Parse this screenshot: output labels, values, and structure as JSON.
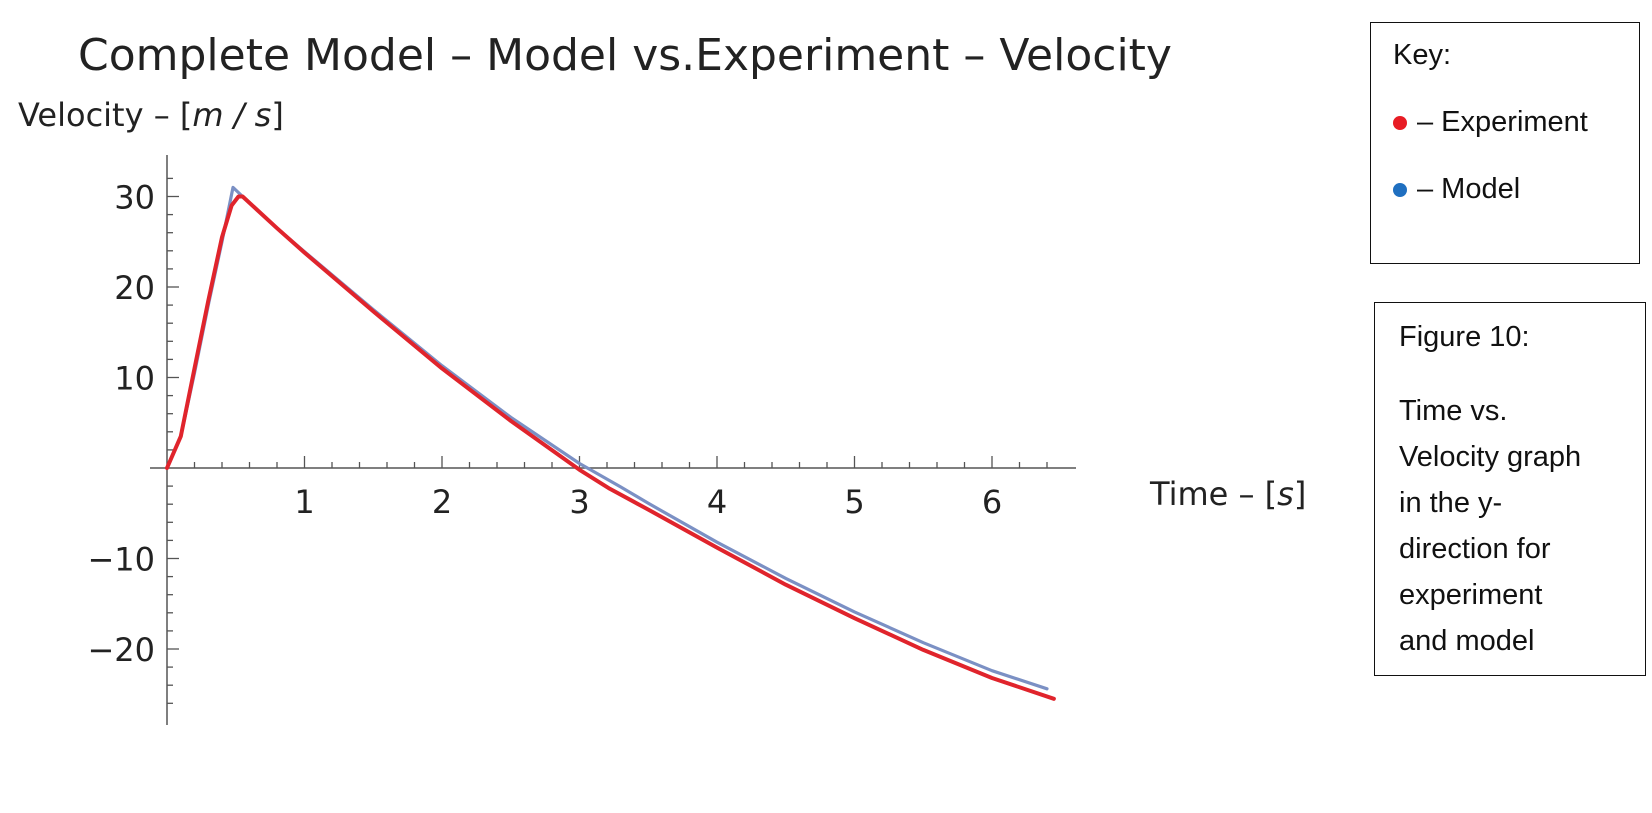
{
  "chart_data": {
    "type": "line",
    "title": "Complete Model – Model vs.Experiment – Velocity",
    "ylabel_main": "Velocity – ",
    "ylabel_unit": "m / s",
    "xlabel_main": "Time – ",
    "xlabel_unit": "s",
    "xlim": [
      0,
      6.6
    ],
    "ylim": [
      -28,
      34
    ],
    "x_ticks": [
      1,
      2,
      3,
      4,
      5,
      6
    ],
    "x_tick_labels": [
      "1",
      "2",
      "3",
      "4",
      "5",
      "6"
    ],
    "y_ticks": [
      -20,
      -10,
      10,
      20,
      30
    ],
    "y_tick_labels": [
      "−20",
      "−10",
      "10",
      "20",
      "30"
    ],
    "grid": false,
    "series": [
      {
        "name": "Model",
        "color": "#7b90c4",
        "x": [
          0,
          0.1,
          0.2,
          0.3,
          0.4,
          0.48,
          0.55,
          0.8,
          1.0,
          1.5,
          2.0,
          2.5,
          3.0,
          3.3,
          3.5,
          4.0,
          4.5,
          5.0,
          5.5,
          6.0,
          6.4
        ],
        "y": [
          0,
          3.5,
          10.5,
          18.0,
          25.0,
          31.0,
          30.0,
          26.5,
          23.9,
          17.5,
          11.3,
          5.6,
          0.5,
          -2.1,
          -3.9,
          -8.2,
          -12.2,
          -15.9,
          -19.3,
          -22.4,
          -24.4
        ]
      },
      {
        "name": "Experiment",
        "color": "#e0242c",
        "x": [
          0,
          0.1,
          0.2,
          0.3,
          0.4,
          0.47,
          0.52,
          0.55,
          0.8,
          1.0,
          1.5,
          2.0,
          2.5,
          3.0,
          3.22,
          3.5,
          4.0,
          4.5,
          5.0,
          5.5,
          6.0,
          6.45
        ],
        "y": [
          0,
          3.5,
          11.0,
          18.5,
          25.5,
          29.0,
          30.0,
          30.0,
          26.5,
          23.8,
          17.3,
          11.0,
          5.2,
          -0.2,
          -2.3,
          -4.6,
          -8.8,
          -12.9,
          -16.6,
          -20.1,
          -23.2,
          -25.5
        ]
      }
    ]
  },
  "legend": {
    "header": "Key:",
    "items": [
      {
        "label": "– Experiment",
        "color": "#e81c24"
      },
      {
        "label": "– Model",
        "color": "#1f6fc0"
      }
    ]
  },
  "caption": {
    "figure": "Figure 10:",
    "lines": [
      "Time vs.",
      "Velocity graph",
      "in the y-",
      "direction for",
      "experiment",
      "and model"
    ]
  }
}
